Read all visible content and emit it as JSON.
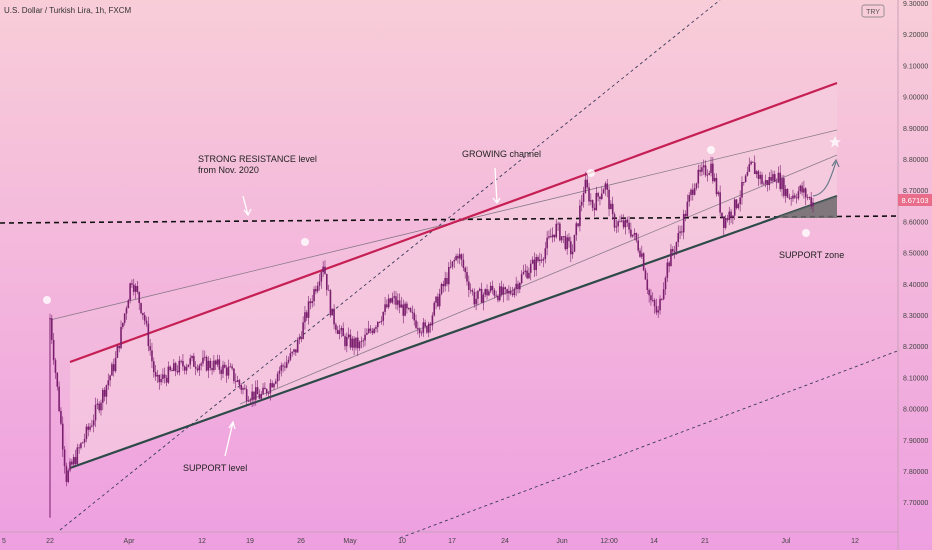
{
  "header": {
    "symbol_title": "U.S. Dollar / Turkish Lira, 1h, FXCM"
  },
  "price_scale": {
    "currency_badge": "TRY",
    "ticks": [
      "9.30000",
      "9.20000",
      "9.10000",
      "9.00000",
      "8.90000",
      "8.80000",
      "8.70000",
      "8.60000",
      "8.50000",
      "8.40000",
      "8.30000",
      "8.20000",
      "8.10000",
      "8.00000",
      "7.90000",
      "7.80000",
      "7.70000"
    ],
    "current_price": "8.67103"
  },
  "time_scale": {
    "ticks": [
      "5",
      "22",
      "Apr",
      "12",
      "19",
      "26",
      "May",
      "10",
      "17",
      "24",
      "Jun",
      "12:00",
      "14",
      "21",
      "Jul",
      "12"
    ]
  },
  "annotations": {
    "resistance": "STRONG RESISTANCE level\nfrom Nov. 2020",
    "channel": "GROWING channel",
    "support_level": "SUPPORT level",
    "support_zone": "SUPPORT zone"
  },
  "colors": {
    "bg_top": "#f8cdd8",
    "bg_bottom": "#ee9fe0",
    "candles": "#7a1f6e",
    "upper_channel": "#c51f53",
    "lower_channel": "#2d4a48",
    "support_zone_fill": "#6b6b6b",
    "price_badge": "#e96d8a"
  },
  "chart_data": {
    "type": "candlestick",
    "instrument": "U.S. Dollar / Turkish Lira, 1h, FXCM",
    "ylim": [
      7.65,
      9.35
    ],
    "current_price": 8.67103,
    "price_path": [
      [
        0.0,
        8.29
      ],
      [
        0.02,
        7.78
      ],
      [
        0.05,
        7.95
      ],
      [
        0.08,
        8.15
      ],
      [
        0.1,
        8.42
      ],
      [
        0.115,
        8.3
      ],
      [
        0.13,
        8.08
      ],
      [
        0.15,
        8.12
      ],
      [
        0.17,
        8.15
      ],
      [
        0.2,
        8.14
      ],
      [
        0.22,
        8.12
      ],
      [
        0.24,
        8.05
      ],
      [
        0.26,
        8.04
      ],
      [
        0.28,
        8.12
      ],
      [
        0.3,
        8.18
      ],
      [
        0.32,
        8.35
      ],
      [
        0.335,
        8.47
      ],
      [
        0.345,
        8.3
      ],
      [
        0.36,
        8.22
      ],
      [
        0.38,
        8.2
      ],
      [
        0.4,
        8.28
      ],
      [
        0.42,
        8.35
      ],
      [
        0.44,
        8.3
      ],
      [
        0.46,
        8.25
      ],
      [
        0.48,
        8.38
      ],
      [
        0.5,
        8.5
      ],
      [
        0.52,
        8.35
      ],
      [
        0.54,
        8.38
      ],
      [
        0.56,
        8.36
      ],
      [
        0.58,
        8.43
      ],
      [
        0.6,
        8.48
      ],
      [
        0.62,
        8.58
      ],
      [
        0.64,
        8.5
      ],
      [
        0.655,
        8.72
      ],
      [
        0.665,
        8.65
      ],
      [
        0.68,
        8.72
      ],
      [
        0.69,
        8.6
      ],
      [
        0.71,
        8.58
      ],
      [
        0.725,
        8.5
      ],
      [
        0.735,
        8.35
      ],
      [
        0.745,
        8.3
      ],
      [
        0.755,
        8.45
      ],
      [
        0.77,
        8.55
      ],
      [
        0.79,
        8.73
      ],
      [
        0.81,
        8.78
      ],
      [
        0.825,
        8.6
      ],
      [
        0.84,
        8.65
      ],
      [
        0.86,
        8.78
      ],
      [
        0.875,
        8.72
      ],
      [
        0.89,
        8.75
      ],
      [
        0.905,
        8.68
      ],
      [
        0.92,
        8.7
      ],
      [
        0.935,
        8.66
      ]
    ],
    "upper_channel": {
      "from": 8.16,
      "to": 9.04
    },
    "lower_channel": {
      "from": 7.8,
      "to": 8.69
    },
    "resistance_level": 8.6,
    "support_zone": {
      "low": 8.61,
      "high": 8.69
    }
  }
}
